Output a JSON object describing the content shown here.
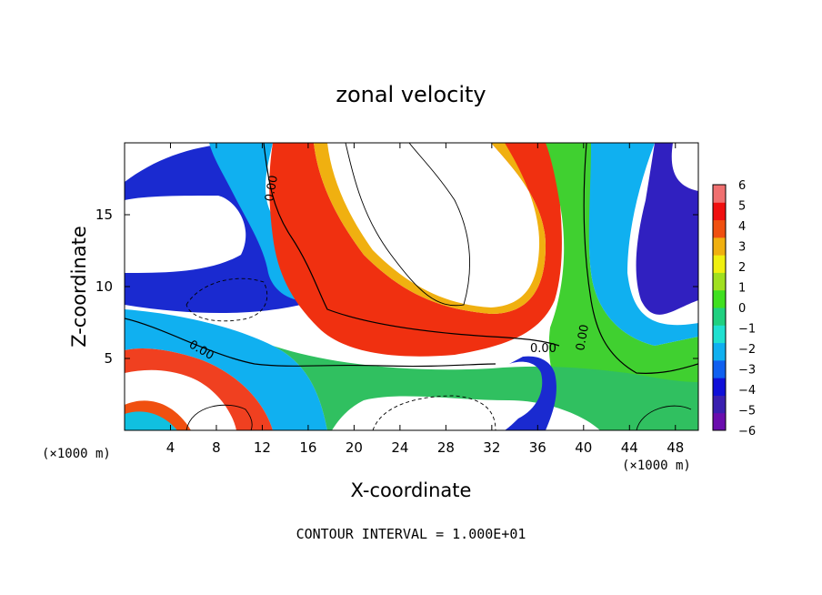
{
  "chart_data": {
    "type": "heatmap",
    "title": "zonal velocity",
    "xlabel": "X-coordinate",
    "ylabel": "Z-coordinate",
    "x_unit": "(×1000 m)",
    "z_unit": "(×1000 m)",
    "xlim": [
      0,
      50
    ],
    "ylim": [
      0,
      20
    ],
    "x_ticks": [
      4,
      8,
      12,
      16,
      20,
      24,
      28,
      32,
      36,
      40,
      44,
      48
    ],
    "y_ticks": [
      5,
      10,
      15
    ],
    "colorbar": {
      "min": -6,
      "max": 6,
      "ticks": [
        6,
        5,
        4,
        3,
        2,
        1,
        0,
        -1,
        -2,
        -3,
        -4,
        -5,
        -6
      ],
      "colors": [
        "#6a0dad",
        "#3a1fb0",
        "#1010d8",
        "#1060f0",
        "#10b0f0",
        "#20e0d0",
        "#20d080",
        "#40e020",
        "#a0e020",
        "#f0f010",
        "#f0b010",
        "#f05010",
        "#f01010",
        "#f07070"
      ]
    },
    "contour_labels": [
      "0.00",
      "0.00",
      "0.00",
      "0.00"
    ],
    "contour_interval": "CONTOUR INTERVAL = 1.000E+01"
  }
}
